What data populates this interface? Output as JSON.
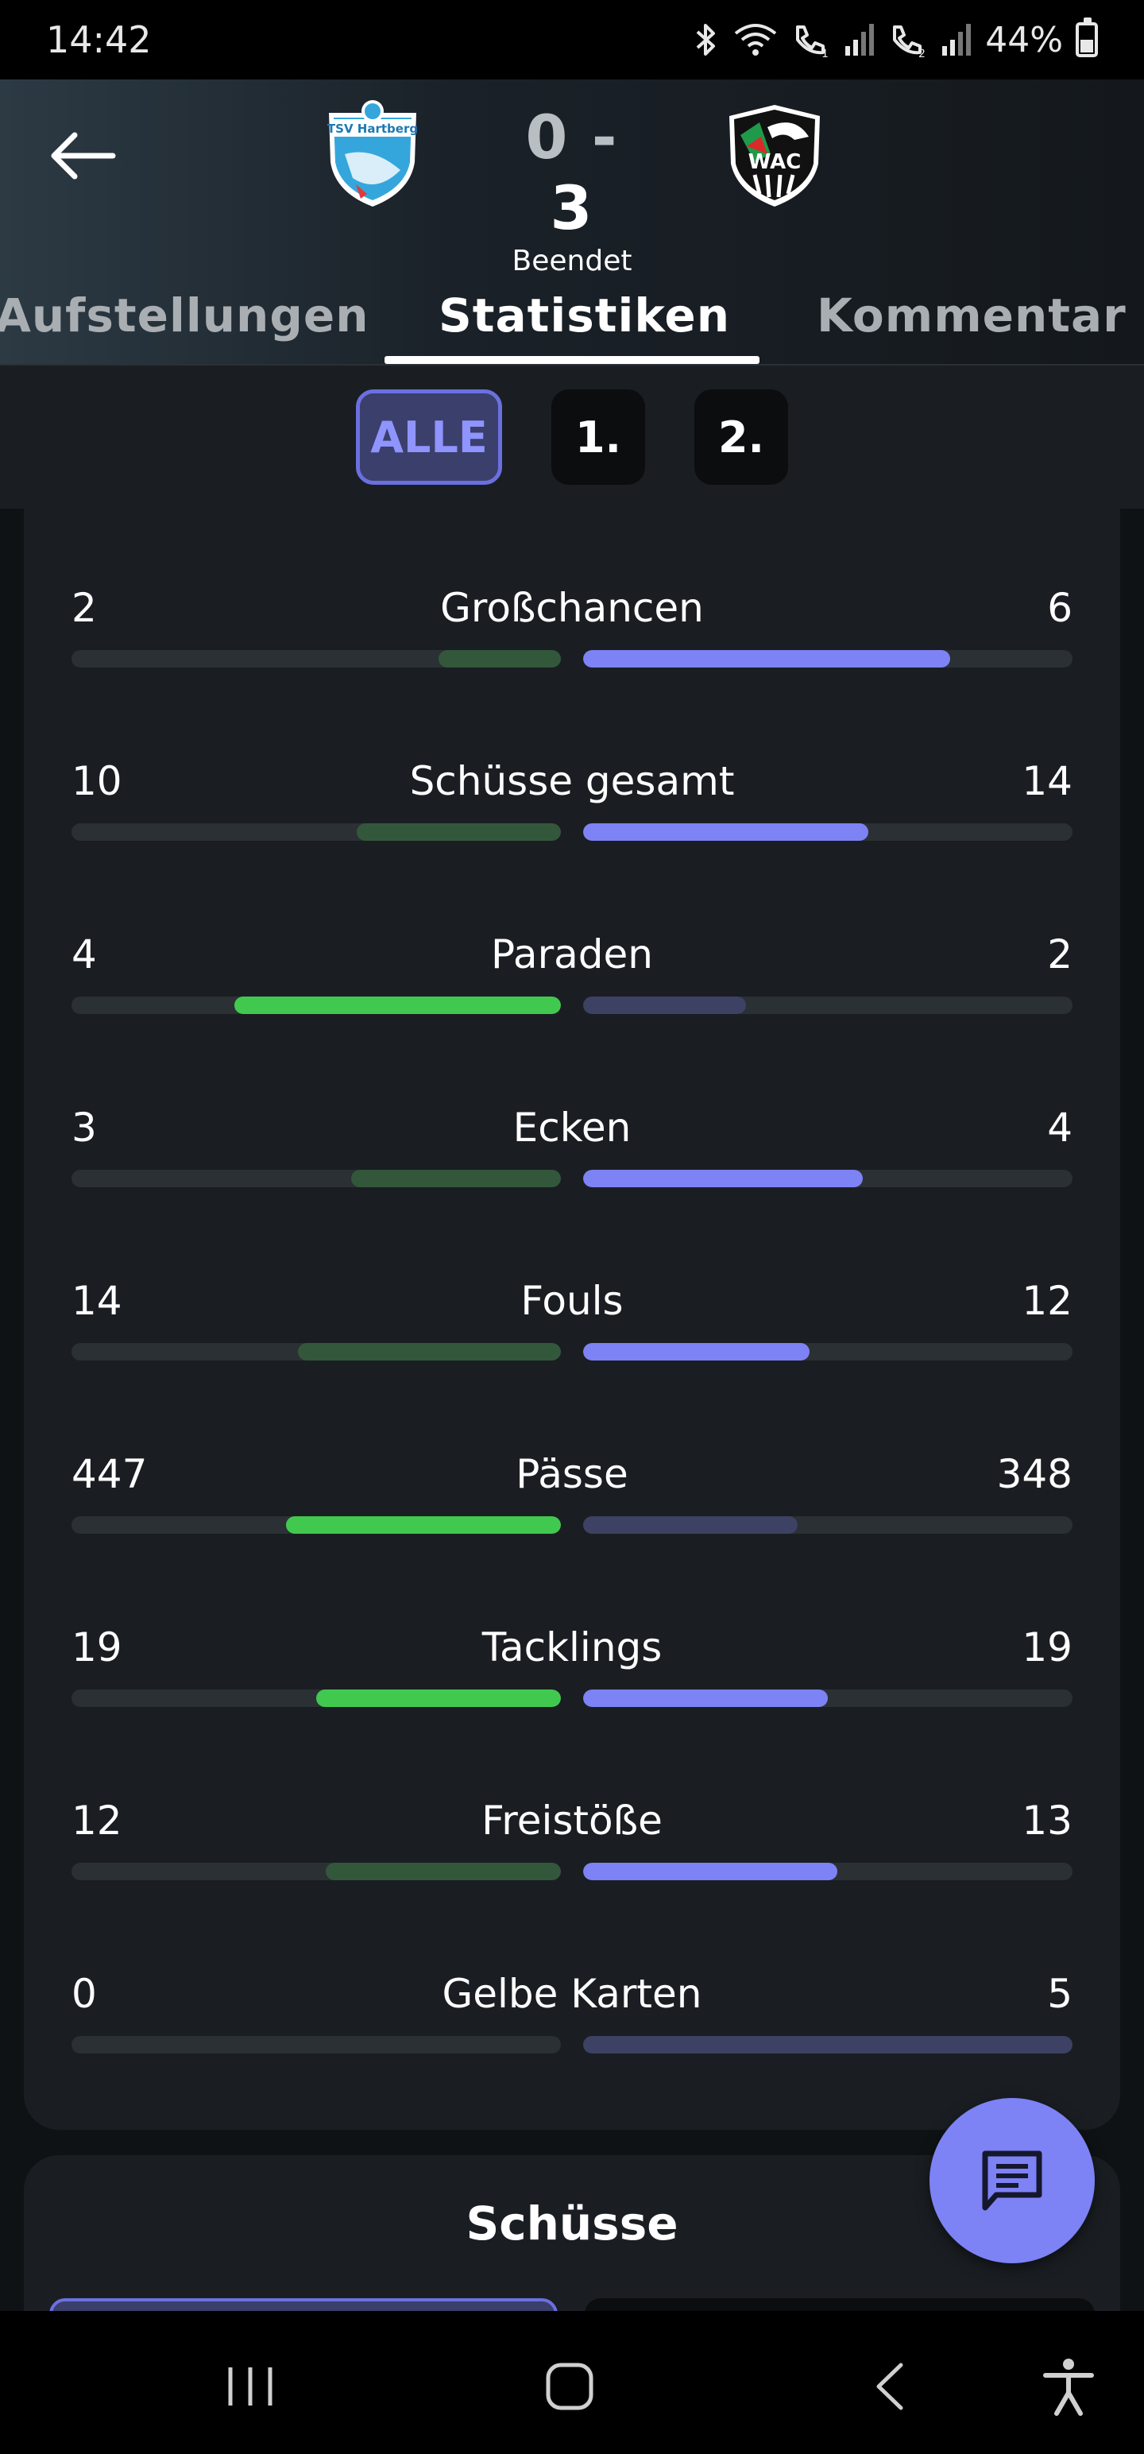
{
  "status_bar": {
    "time": "14:42",
    "battery": "44%",
    "icons": [
      "bluetooth-icon",
      "wifi-icon",
      "wifi-call-icon",
      "signal-icon",
      "wifi-call-icon",
      "signal-icon"
    ]
  },
  "header": {
    "home_team_logo": "TSV Hartberg",
    "away_team_logo": "WAC",
    "score_home": "0",
    "score_sep": "-",
    "score_away": "3",
    "match_status": "Beendet"
  },
  "tabs": [
    {
      "label": "Aufstellungen",
      "active": false
    },
    {
      "label": "Statistiken",
      "active": true
    },
    {
      "label": "Kommentar",
      "active": false
    }
  ],
  "period_filter": [
    {
      "label": "ALLE",
      "active": true
    },
    {
      "label": "1.",
      "active": false
    },
    {
      "label": "2.",
      "active": false
    }
  ],
  "colors": {
    "home_strong": "#41c94f",
    "home_weak": "#33573b",
    "away_strong": "#7d82f5",
    "away_weak": "#3d4163",
    "track": "#2b3035"
  },
  "stats": [
    {
      "label": "Großchancen",
      "home": "2",
      "away": "6",
      "home_share": 0.25,
      "away_share": 0.75,
      "leader": "away"
    },
    {
      "label": "Schüsse gesamt",
      "home": "10",
      "away": "14",
      "home_share": 0.417,
      "away_share": 0.583,
      "leader": "away"
    },
    {
      "label": "Paraden",
      "home": "4",
      "away": "2",
      "home_share": 0.667,
      "away_share": 0.333,
      "leader": "home"
    },
    {
      "label": "Ecken",
      "home": "3",
      "away": "4",
      "home_share": 0.429,
      "away_share": 0.571,
      "leader": "away"
    },
    {
      "label": "Fouls",
      "home": "14",
      "away": "12",
      "home_share": 0.538,
      "away_share": 0.462,
      "leader": "away"
    },
    {
      "label": "Pässe",
      "home": "447",
      "away": "348",
      "home_share": 0.562,
      "away_share": 0.438,
      "leader": "home"
    },
    {
      "label": "Tacklings",
      "home": "19",
      "away": "19",
      "home_share": 0.5,
      "away_share": 0.5,
      "leader": "both"
    },
    {
      "label": "Freistöße",
      "home": "12",
      "away": "13",
      "home_share": 0.48,
      "away_share": 0.52,
      "leader": "away"
    },
    {
      "label": "Gelbe Karten",
      "home": "0",
      "away": "5",
      "home_share": 0.0,
      "away_share": 1.0,
      "leader": "none"
    }
  ],
  "shots_section": {
    "title": "Schüsse"
  },
  "fab": {
    "icon": "chat-icon"
  },
  "nav_bar": {
    "icons": [
      "recent-apps-icon",
      "home-icon",
      "back-icon",
      "accessibility-icon"
    ]
  }
}
